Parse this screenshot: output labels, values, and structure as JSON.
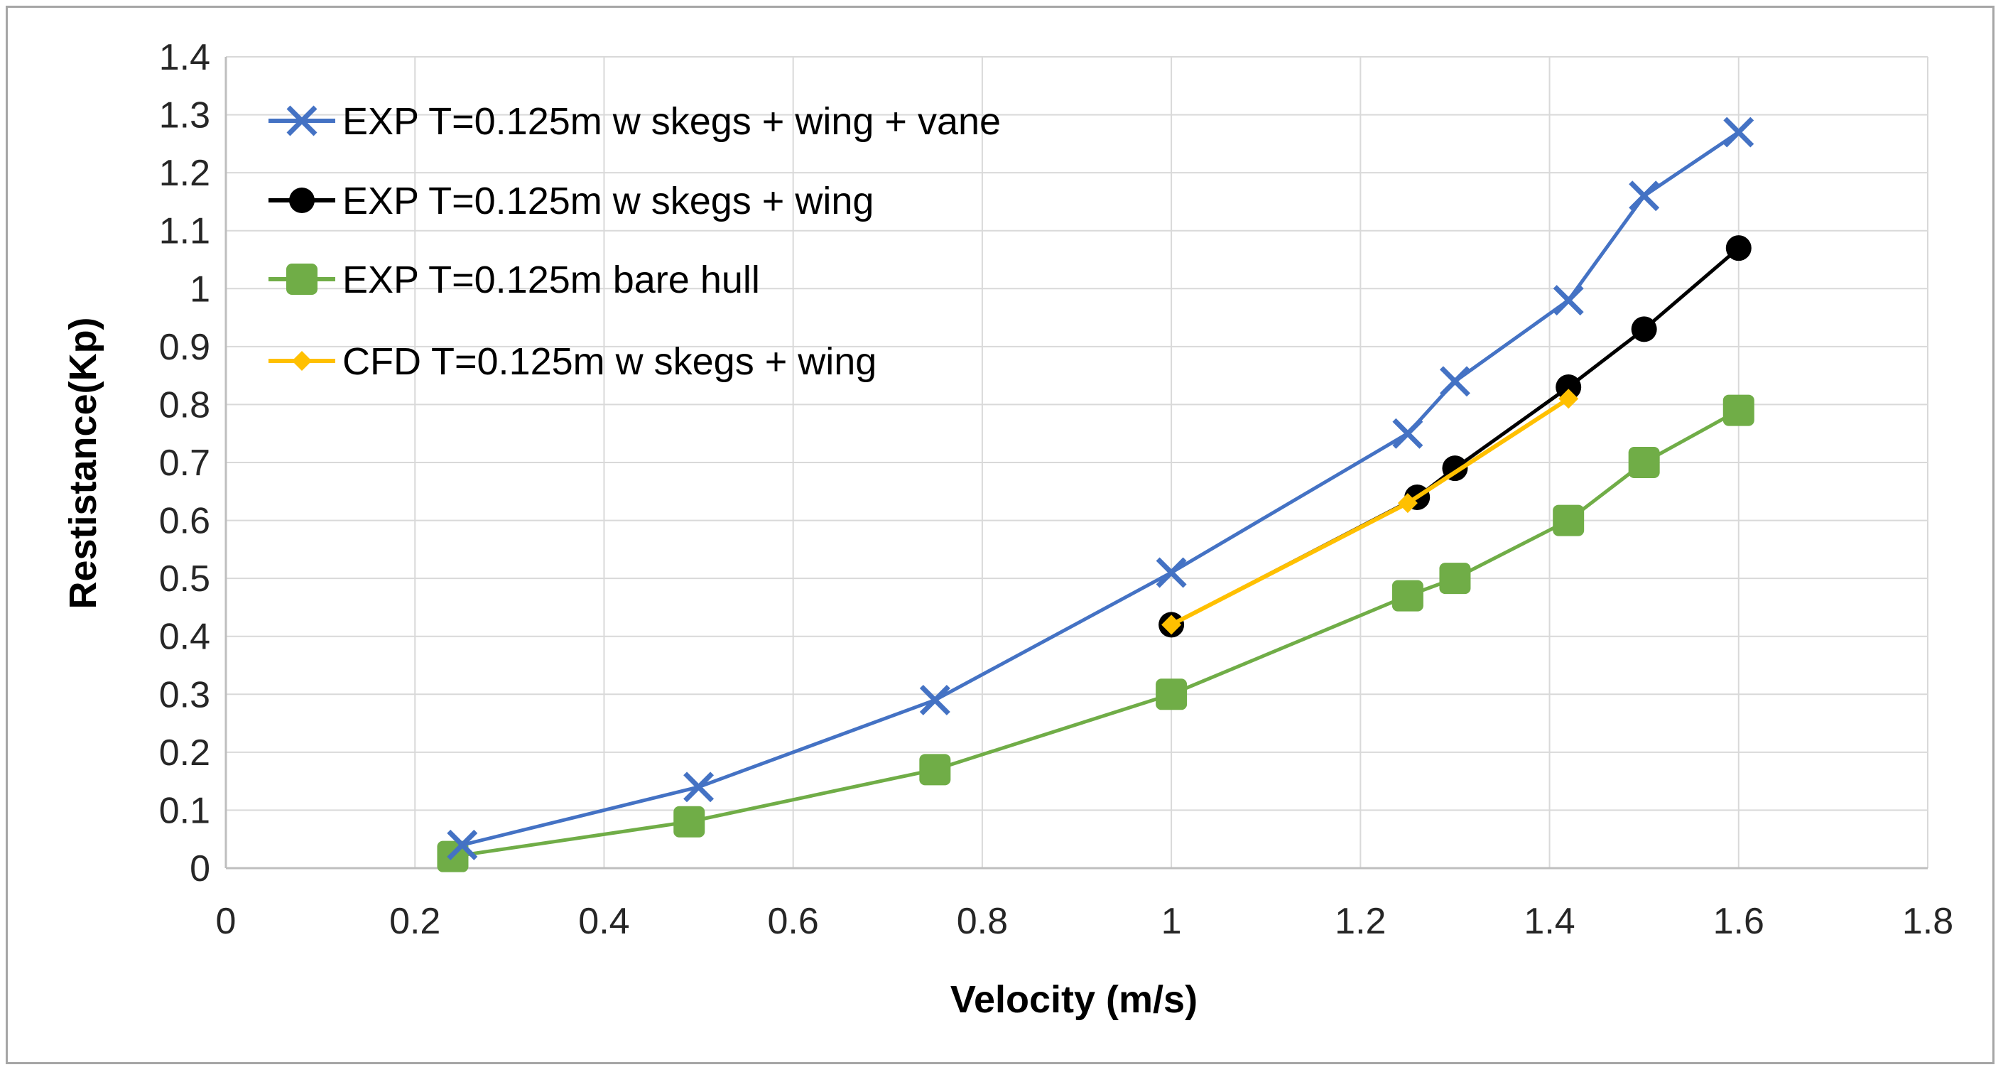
{
  "chart_data": {
    "type": "line",
    "title": "",
    "xlabel": "Velocity (m/s)",
    "ylabel": "Restistance(Kp)",
    "xlim": [
      0,
      1.8
    ],
    "ylim": [
      0,
      1.4
    ],
    "x_ticks": [
      "0",
      "0.2",
      "0.4",
      "0.6",
      "0.8",
      "1",
      "1.2",
      "1.4",
      "1.6",
      "1.8"
    ],
    "y_ticks": [
      "0",
      "0.1",
      "0.2",
      "0.3",
      "0.4",
      "0.5",
      "0.6",
      "0.7",
      "0.8",
      "0.9",
      "1",
      "1.1",
      "1.2",
      "1.3",
      "1.4"
    ],
    "grid": true,
    "legend_position": "top-left",
    "series": [
      {
        "name": "EXP T=0.125m w skegs + wing + vane",
        "color": "#4472c4",
        "marker": "x",
        "x": [
          0.25,
          0.5,
          0.75,
          1.0,
          1.25,
          1.3,
          1.42,
          1.5,
          1.6
        ],
        "y": [
          0.04,
          0.14,
          0.29,
          0.51,
          0.75,
          0.84,
          0.98,
          1.16,
          1.27
        ]
      },
      {
        "name": "EXP T=0.125m w skegs + wing",
        "color": "#000000",
        "marker": "circle",
        "x": [
          1.0,
          1.26,
          1.3,
          1.42,
          1.5,
          1.6
        ],
        "y": [
          0.42,
          0.64,
          0.69,
          0.83,
          0.93,
          1.07
        ]
      },
      {
        "name": "EXP T=0.125m bare hull",
        "color": "#70ad47",
        "marker": "square",
        "x": [
          0.24,
          0.49,
          0.75,
          1.0,
          1.25,
          1.3,
          1.42,
          1.5,
          1.6
        ],
        "y": [
          0.02,
          0.08,
          0.17,
          0.3,
          0.47,
          0.5,
          0.6,
          0.7,
          0.79
        ]
      },
      {
        "name": "CFD T=0.125m w skegs + wing",
        "color": "#ffc000",
        "marker": "diamond",
        "x": [
          1.0,
          1.25,
          1.42
        ],
        "y": [
          0.42,
          0.63,
          0.81
        ]
      }
    ]
  }
}
